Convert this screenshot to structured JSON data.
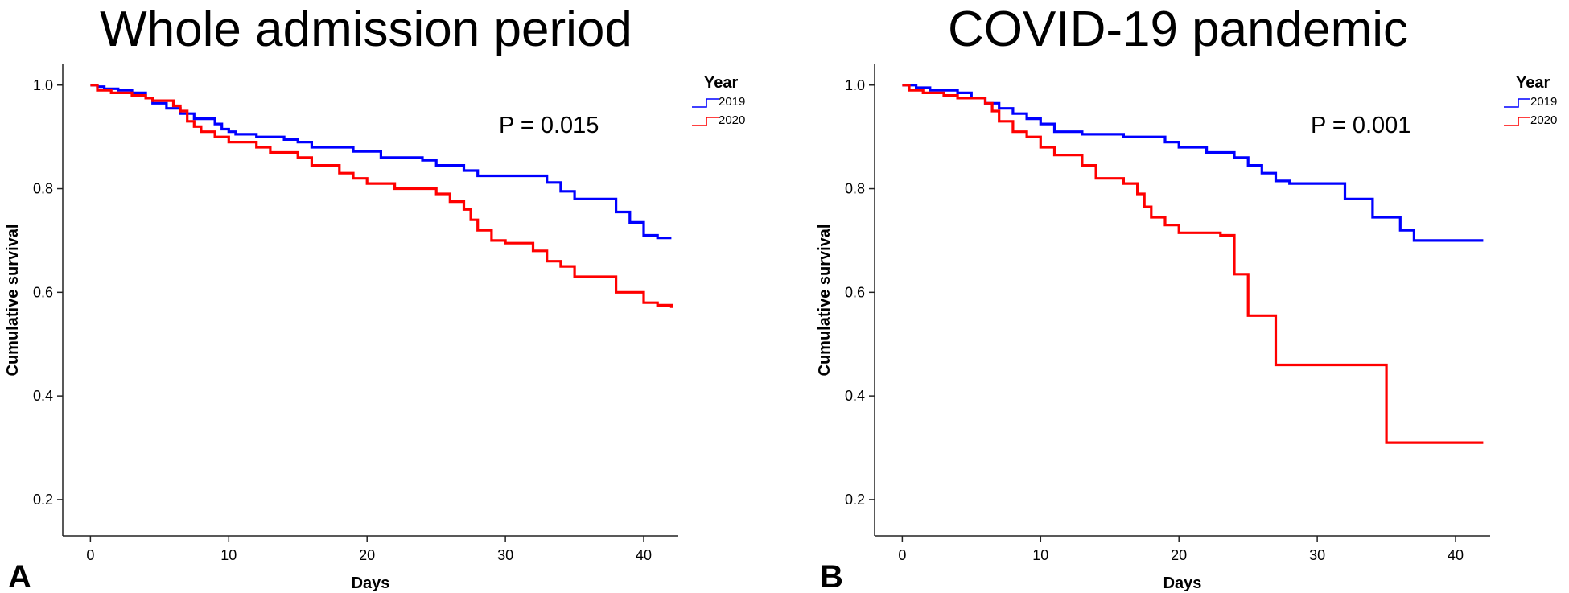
{
  "chart_data": [
    {
      "panel_label": "A",
      "type": "line",
      "step": true,
      "title": "Whole admission period",
      "xlabel": "Days",
      "ylabel": "Cumulative survival",
      "xlim": [
        -2,
        42.5
      ],
      "ylim": [
        0.13,
        1.04
      ],
      "xticks": [
        0,
        10,
        20,
        30,
        40
      ],
      "yticks": [
        0.2,
        0.4,
        0.6,
        0.8,
        1.0
      ],
      "xtick_labels": [
        "0",
        "10",
        "20",
        "30",
        "40"
      ],
      "ytick_labels": [
        "0.2",
        "0.4",
        "0.6",
        "0.8",
        "1.0"
      ],
      "annotation": "P = 0.015",
      "legend": {
        "title": "Year",
        "position": "top-right outside"
      },
      "grid": false,
      "series": [
        {
          "name": "2019",
          "color": "#0000ff",
          "points": [
            [
              0,
              1.0
            ],
            [
              0.5,
              0.997
            ],
            [
              1,
              0.993
            ],
            [
              2,
              0.99
            ],
            [
              3,
              0.985
            ],
            [
              4,
              0.975
            ],
            [
              4.5,
              0.965
            ],
            [
              5.5,
              0.955
            ],
            [
              6.5,
              0.945
            ],
            [
              7.5,
              0.935
            ],
            [
              9,
              0.925
            ],
            [
              9.5,
              0.915
            ],
            [
              10,
              0.91
            ],
            [
              10.5,
              0.905
            ],
            [
              12,
              0.9
            ],
            [
              14,
              0.895
            ],
            [
              15,
              0.89
            ],
            [
              16,
              0.88
            ],
            [
              19,
              0.872
            ],
            [
              21,
              0.86
            ],
            [
              24,
              0.855
            ],
            [
              25,
              0.845
            ],
            [
              27,
              0.835
            ],
            [
              28,
              0.825
            ],
            [
              33,
              0.812
            ],
            [
              34,
              0.795
            ],
            [
              35,
              0.78
            ],
            [
              38,
              0.755
            ],
            [
              39,
              0.735
            ],
            [
              40,
              0.71
            ],
            [
              41,
              0.705
            ],
            [
              42,
              0.705
            ]
          ]
        },
        {
          "name": "2020",
          "color": "#ff0000",
          "points": [
            [
              0,
              1.0
            ],
            [
              0.5,
              0.99
            ],
            [
              1.5,
              0.985
            ],
            [
              3,
              0.98
            ],
            [
              4,
              0.975
            ],
            [
              4.5,
              0.97
            ],
            [
              6,
              0.96
            ],
            [
              6.5,
              0.95
            ],
            [
              7,
              0.93
            ],
            [
              7.5,
              0.92
            ],
            [
              8,
              0.91
            ],
            [
              9,
              0.9
            ],
            [
              10,
              0.89
            ],
            [
              12,
              0.88
            ],
            [
              13,
              0.87
            ],
            [
              15,
              0.86
            ],
            [
              16,
              0.845
            ],
            [
              18,
              0.83
            ],
            [
              19,
              0.82
            ],
            [
              20,
              0.81
            ],
            [
              22,
              0.8
            ],
            [
              25,
              0.79
            ],
            [
              26,
              0.775
            ],
            [
              27,
              0.76
            ],
            [
              27.5,
              0.74
            ],
            [
              28,
              0.72
            ],
            [
              29,
              0.7
            ],
            [
              30,
              0.695
            ],
            [
              32,
              0.68
            ],
            [
              33,
              0.66
            ],
            [
              34,
              0.65
            ],
            [
              35,
              0.63
            ],
            [
              38,
              0.6
            ],
            [
              40,
              0.58
            ],
            [
              41,
              0.575
            ],
            [
              42,
              0.57
            ]
          ]
        }
      ]
    },
    {
      "panel_label": "B",
      "type": "line",
      "step": true,
      "title": "COVID-19 pandemic",
      "xlabel": "Days",
      "ylabel": "Cumulative survival",
      "xlim": [
        -2,
        42.5
      ],
      "ylim": [
        0.13,
        1.04
      ],
      "xticks": [
        0,
        10,
        20,
        30,
        40
      ],
      "yticks": [
        0.2,
        0.4,
        0.6,
        0.8,
        1.0
      ],
      "xtick_labels": [
        "0",
        "10",
        "20",
        "30",
        "40"
      ],
      "ytick_labels": [
        "0.2",
        "0.4",
        "0.6",
        "0.8",
        "1.0"
      ],
      "annotation": "P = 0.001",
      "legend": {
        "title": "Year",
        "position": "top-right outside"
      },
      "grid": false,
      "series": [
        {
          "name": "2019",
          "color": "#0000ff",
          "points": [
            [
              0,
              1.0
            ],
            [
              1,
              0.995
            ],
            [
              2,
              0.99
            ],
            [
              4,
              0.985
            ],
            [
              5,
              0.975
            ],
            [
              6,
              0.965
            ],
            [
              7,
              0.955
            ],
            [
              8,
              0.945
            ],
            [
              9,
              0.935
            ],
            [
              10,
              0.925
            ],
            [
              11,
              0.91
            ],
            [
              13,
              0.905
            ],
            [
              16,
              0.9
            ],
            [
              19,
              0.89
            ],
            [
              20,
              0.88
            ],
            [
              22,
              0.87
            ],
            [
              24,
              0.86
            ],
            [
              25,
              0.845
            ],
            [
              26,
              0.83
            ],
            [
              27,
              0.815
            ],
            [
              28,
              0.81
            ],
            [
              32,
              0.78
            ],
            [
              34,
              0.745
            ],
            [
              36,
              0.72
            ],
            [
              37,
              0.7
            ],
            [
              42,
              0.7
            ]
          ]
        },
        {
          "name": "2020",
          "color": "#ff0000",
          "points": [
            [
              0,
              1.0
            ],
            [
              0.5,
              0.99
            ],
            [
              1.5,
              0.985
            ],
            [
              3,
              0.98
            ],
            [
              4,
              0.975
            ],
            [
              6,
              0.965
            ],
            [
              6.5,
              0.95
            ],
            [
              7,
              0.93
            ],
            [
              8,
              0.91
            ],
            [
              9,
              0.9
            ],
            [
              10,
              0.88
            ],
            [
              11,
              0.865
            ],
            [
              13,
              0.845
            ],
            [
              14,
              0.82
            ],
            [
              16,
              0.81
            ],
            [
              17,
              0.79
            ],
            [
              17.5,
              0.765
            ],
            [
              18,
              0.745
            ],
            [
              19,
              0.73
            ],
            [
              20,
              0.715
            ],
            [
              23,
              0.71
            ],
            [
              24,
              0.635
            ],
            [
              25,
              0.555
            ],
            [
              27,
              0.46
            ],
            [
              35,
              0.31
            ],
            [
              42,
              0.31
            ]
          ]
        }
      ]
    }
  ]
}
